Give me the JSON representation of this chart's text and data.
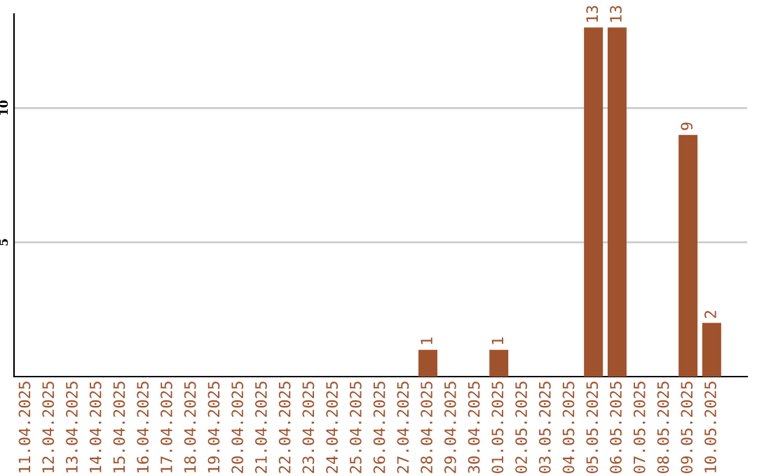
{
  "chart_data": {
    "type": "bar",
    "categories": [
      "11.04.2025",
      "12.04.2025",
      "13.04.2025",
      "14.04.2025",
      "15.04.2025",
      "16.04.2025",
      "17.04.2025",
      "18.04.2025",
      "19.04.2025",
      "20.04.2025",
      "21.04.2025",
      "22.04.2025",
      "23.04.2025",
      "24.04.2025",
      "25.04.2025",
      "26.04.2025",
      "27.04.2025",
      "28.04.2025",
      "29.04.2025",
      "30.04.2025",
      "01.05.2025",
      "02.05.2025",
      "03.05.2025",
      "04.05.2025",
      "05.05.2025",
      "06.05.2025",
      "07.05.2025",
      "08.05.2025",
      "09.05.2025",
      "10.05.2025"
    ],
    "series": [
      {
        "color": "#a0522d",
        "values": [
          0,
          0,
          0,
          0,
          0,
          0,
          0,
          0,
          0,
          0,
          0,
          0,
          0,
          0,
          0,
          0,
          0,
          1,
          0,
          0,
          1,
          0,
          0,
          0,
          13,
          13,
          0,
          0,
          9,
          2
        ],
        "value_labels": [
          null,
          null,
          null,
          null,
          null,
          null,
          null,
          null,
          null,
          null,
          null,
          null,
          null,
          null,
          null,
          null,
          null,
          "1",
          null,
          null,
          "1",
          null,
          null,
          null,
          "13",
          "13",
          null,
          null,
          "9",
          "2"
        ]
      }
    ],
    "ylim": [
      0,
      13.5
    ],
    "yticks": [
      5,
      10
    ],
    "grid": "y"
  }
}
